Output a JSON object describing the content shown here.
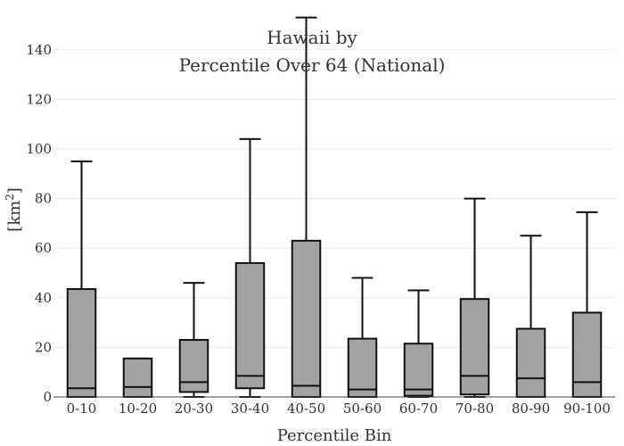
{
  "chart_data": {
    "type": "box",
    "title_line1": "Hawaii  by",
    "title_line2": "Percentile Over 64 (National)",
    "xlabel": "Percentile Bin",
    "ylabel": "[km",
    "ylabel_sup": "2",
    "ylabel_close": "]",
    "ylim": [
      0,
      150
    ],
    "yticks": [
      0,
      20,
      40,
      60,
      80,
      100,
      120,
      140
    ],
    "grid": true,
    "categories": [
      "0-10",
      "10-20",
      "20-30",
      "30-40",
      "40-50",
      "50-60",
      "60-70",
      "70-80",
      "80-90",
      "90-100"
    ],
    "boxes": [
      {
        "min": 0,
        "q1": 0,
        "median": 3.5,
        "q3": 43.5,
        "max": 95
      },
      {
        "min": 0,
        "q1": 0,
        "median": 4,
        "q3": 15.5,
        "max": 15.5
      },
      {
        "min": 0,
        "q1": 2,
        "median": 6,
        "q3": 23,
        "max": 46
      },
      {
        "min": 0,
        "q1": 3.5,
        "median": 8.5,
        "q3": 54,
        "max": 104
      },
      {
        "min": 0,
        "q1": 0,
        "median": 4.5,
        "q3": 63,
        "max": 153
      },
      {
        "min": 0,
        "q1": 0,
        "median": 3,
        "q3": 23.5,
        "max": 48
      },
      {
        "min": 0,
        "q1": 0.5,
        "median": 3,
        "q3": 21.5,
        "max": 43
      },
      {
        "min": 0,
        "q1": 1,
        "median": 8.5,
        "q3": 39.5,
        "max": 80
      },
      {
        "min": 0,
        "q1": 0,
        "median": 7.5,
        "q3": 27.5,
        "max": 65
      },
      {
        "min": 0,
        "q1": 0,
        "median": 6,
        "q3": 34,
        "max": 74.5
      }
    ]
  }
}
